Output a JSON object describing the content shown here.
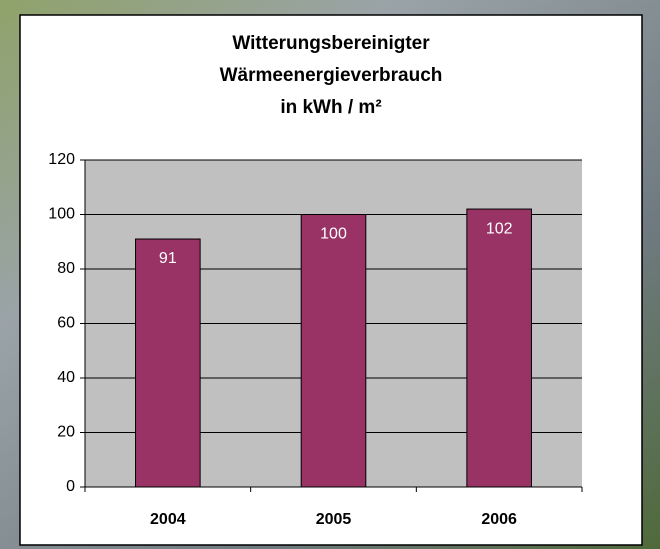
{
  "chart_data": {
    "type": "bar",
    "title": [
      "Witterungsbereinigter",
      "Wärmeenergieverbrauch",
      "in kWh / m²"
    ],
    "categories": [
      "2004",
      "2005",
      "2006"
    ],
    "values": [
      91,
      100,
      102
    ],
    "color": "#993366",
    "ylim": [
      0,
      120
    ],
    "yticks": [
      0,
      20,
      40,
      60,
      80,
      100,
      120
    ],
    "grid": true
  }
}
